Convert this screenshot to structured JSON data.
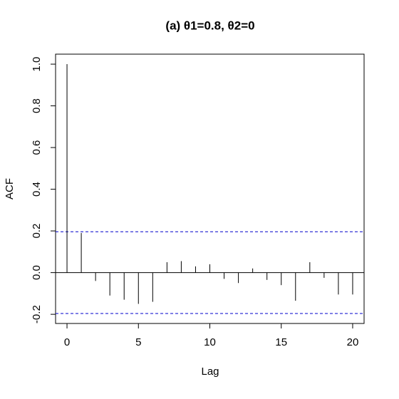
{
  "chart_data": {
    "type": "acf",
    "title": "(a)  θ1=0.8, θ2=0",
    "x_label": "Lag",
    "y_label": "ACF",
    "x": [
      0,
      1,
      2,
      3,
      4,
      5,
      6,
      7,
      8,
      9,
      10,
      11,
      12,
      13,
      14,
      15,
      16,
      17,
      18,
      19,
      20
    ],
    "values": [
      1.0,
      0.19,
      -0.04,
      -0.11,
      -0.13,
      -0.15,
      -0.14,
      0.05,
      0.055,
      0.03,
      0.04,
      -0.03,
      -0.05,
      0.02,
      -0.035,
      -0.06,
      -0.135,
      0.05,
      -0.025,
      -0.105,
      -0.105
    ],
    "color": "#000000",
    "ci_lines": [
      0.196,
      -0.196
    ],
    "ci_color": "#0000cc",
    "xlim": [
      -0.8,
      20.8
    ],
    "xticks": [
      0,
      5,
      10,
      15,
      20
    ],
    "ylim": [
      -0.244,
      1.048
    ],
    "yticks": [
      -0.2,
      {
        "value": 0,
        "label": "0.0"
      },
      0.2,
      0.4,
      0.6,
      0.8,
      {
        "value": 1,
        "label": "1.0"
      }
    ]
  }
}
